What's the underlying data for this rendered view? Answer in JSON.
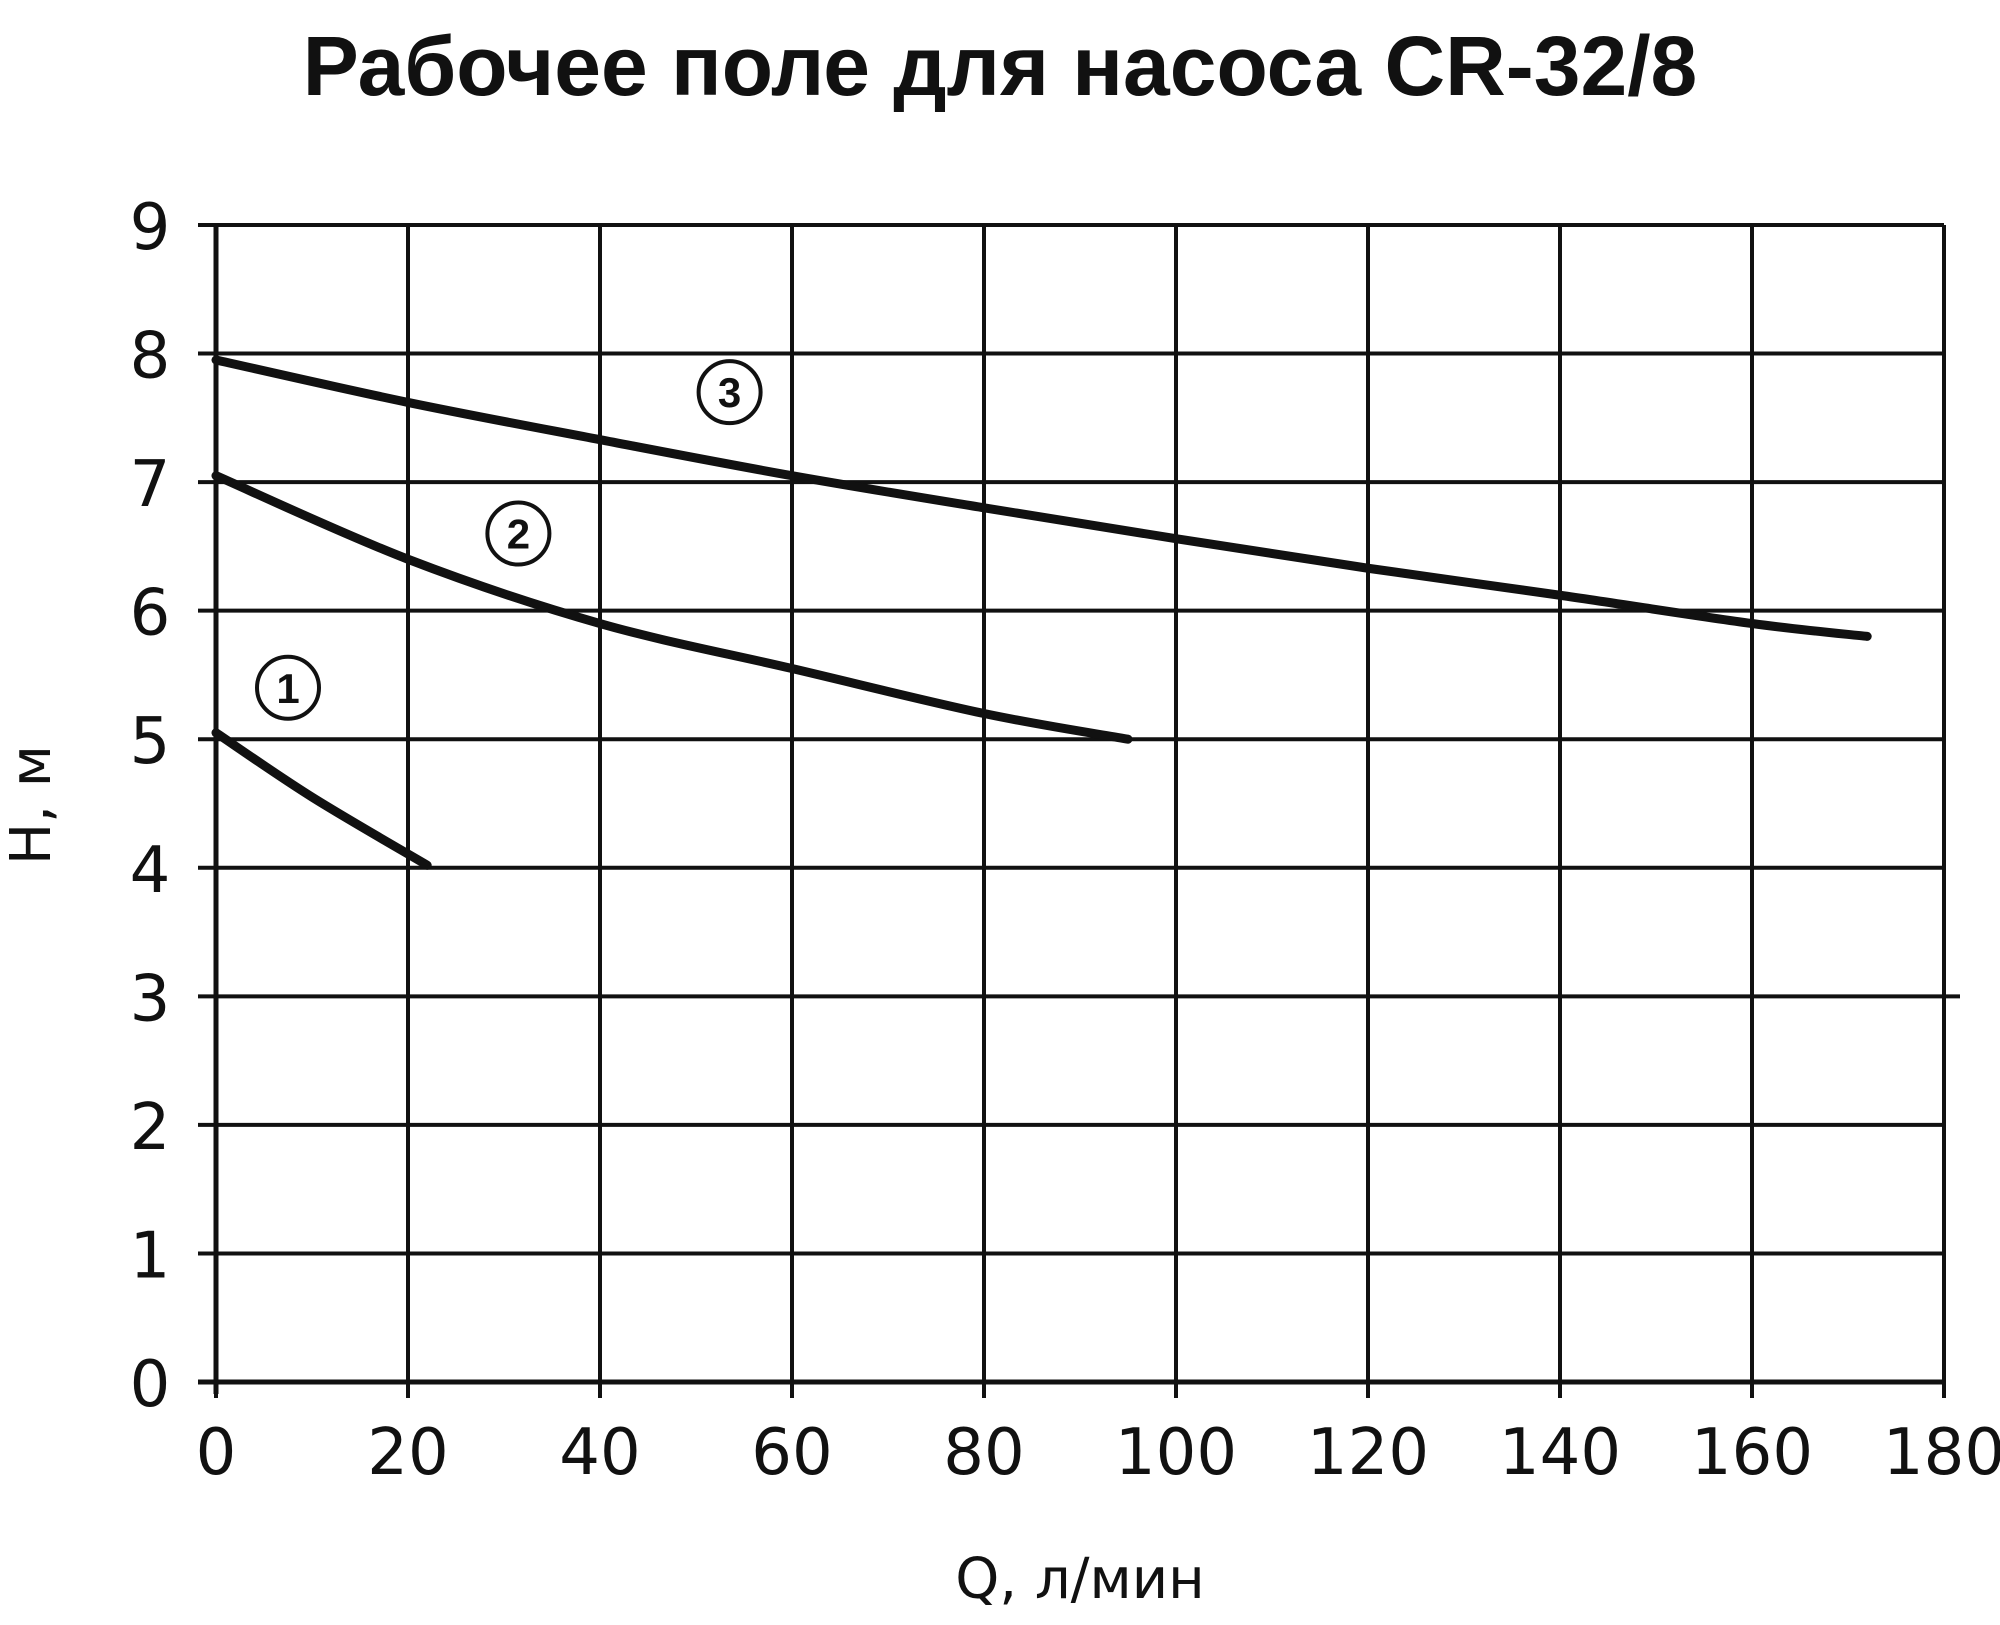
{
  "chart_data": {
    "type": "line",
    "title": "Рабочее поле для насоса CR-32/8",
    "xlabel": "Q, л/мин",
    "ylabel": "H, м",
    "xlim": [
      0,
      180
    ],
    "ylim": [
      0,
      9
    ],
    "grid": true,
    "x_ticks": [
      "0",
      "20",
      "40",
      "60",
      "80",
      "100",
      "120",
      "140",
      "160",
      "180"
    ],
    "y_ticks": [
      "0",
      "1",
      "2",
      "3",
      "4",
      "5",
      "6",
      "7",
      "8",
      "9"
    ],
    "series": [
      {
        "name": "1",
        "x": [
          0,
          10,
          22
        ],
        "y": [
          5.05,
          4.55,
          4.02
        ]
      },
      {
        "name": "2",
        "x": [
          0,
          20,
          40,
          60,
          80,
          95
        ],
        "y": [
          7.05,
          6.4,
          5.9,
          5.55,
          5.2,
          5.0
        ]
      },
      {
        "name": "3",
        "x": [
          0,
          20,
          40,
          60,
          80,
          100,
          120,
          140,
          160,
          172
        ],
        "y": [
          7.95,
          7.62,
          7.33,
          7.05,
          6.8,
          6.56,
          6.33,
          6.12,
          5.9,
          5.8
        ]
      }
    ],
    "series_label_positions": [
      {
        "label": "1",
        "x": 7.5,
        "y": 5.4
      },
      {
        "label": "2",
        "x": 31.5,
        "y": 6.6
      },
      {
        "label": "3",
        "x": 53.5,
        "y": 7.7
      }
    ]
  }
}
